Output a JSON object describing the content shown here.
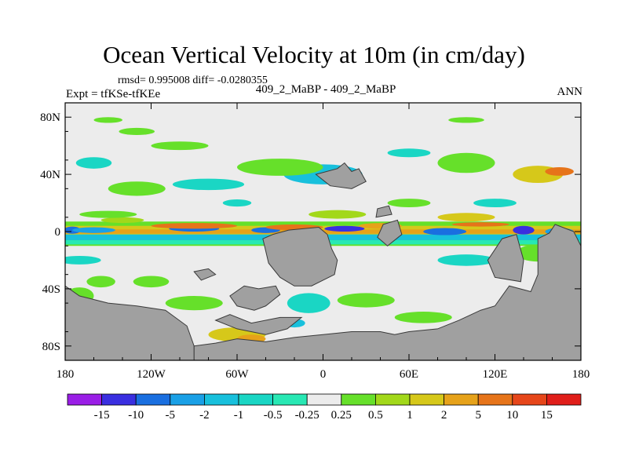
{
  "chart_data": {
    "type": "heatmap",
    "title": "Ocean Vertical Velocity at 10m (in cm/day)",
    "stats_label": "rmsd= 0.995008 diff= -0.0280355",
    "left_label": "Expt = tfKSe-tfKEe",
    "center_label": "409_2_MaBP - 409_2_MaBP",
    "right_label": "ANN",
    "x_ticks": [
      "180",
      "120W",
      "60W",
      "0",
      "60E",
      "120E",
      "180"
    ],
    "x_values": [
      -180,
      -120,
      -60,
      0,
      60,
      120,
      180
    ],
    "xlim": [
      -180,
      180
    ],
    "y_ticks": [
      "80N",
      "40N",
      "0",
      "40S",
      "80S"
    ],
    "y_values": [
      80,
      40,
      0,
      -40,
      -80
    ],
    "ylim": [
      -90,
      90
    ],
    "colorbar": {
      "labels": [
        "-15",
        "-10",
        "-5",
        "-2",
        "-1",
        "-0.5",
        "-0.25",
        "0.25",
        "0.5",
        "1",
        "2",
        "5",
        "10",
        "15"
      ],
      "colors": [
        "#9a1ee6",
        "#3a2fe0",
        "#1a6fe0",
        "#1aa0e6",
        "#18c0dc",
        "#1ad6c4",
        "#28e8b4",
        "#ececec",
        "#66e02a",
        "#a2d81a",
        "#d6c81a",
        "#e6a21a",
        "#e6741a",
        "#e6461a",
        "#e01e1a"
      ]
    },
    "land_color": "#a0a0a0",
    "background_color": "#ececec"
  }
}
